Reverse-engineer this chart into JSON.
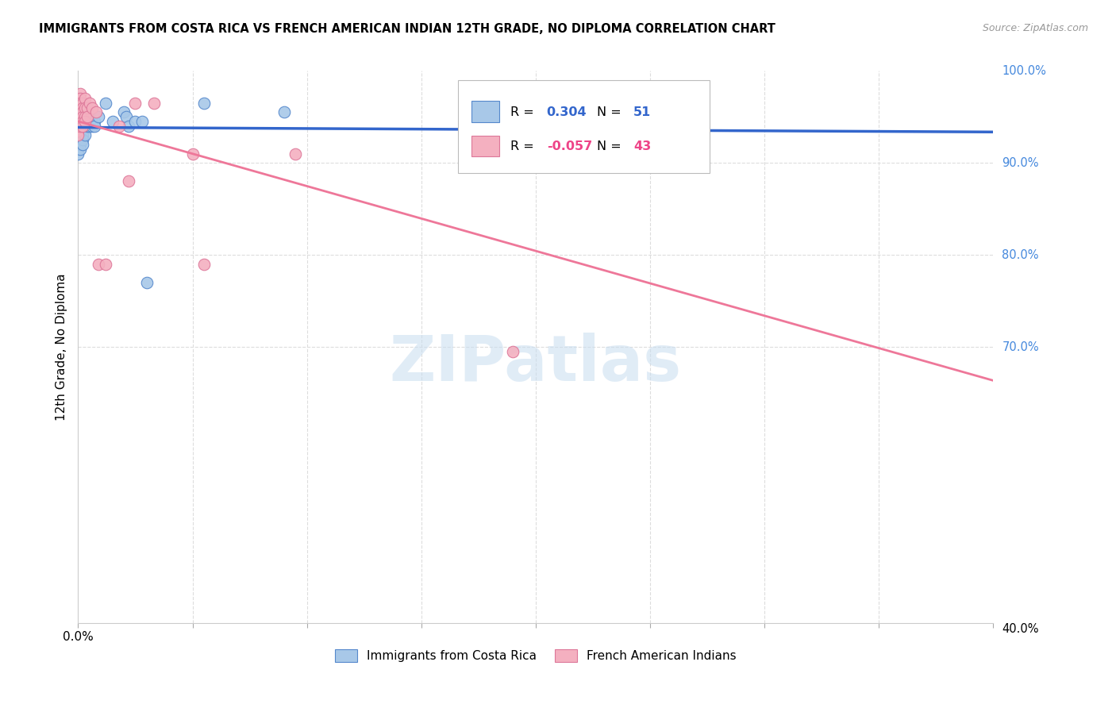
{
  "title": "IMMIGRANTS FROM COSTA RICA VS FRENCH AMERICAN INDIAN 12TH GRADE, NO DIPLOMA CORRELATION CHART",
  "source": "Source: ZipAtlas.com",
  "ylabel_label": "12th Grade, No Diploma",
  "legend_blue_label": "Immigrants from Costa Rica",
  "legend_pink_label": "French American Indians",
  "R_blue": 0.304,
  "N_blue": 51,
  "R_pink": -0.057,
  "N_pink": 43,
  "watermark": "ZIPatlas",
  "blue_fill": "#a8c8e8",
  "pink_fill": "#f4b0c0",
  "blue_edge": "#5588cc",
  "pink_edge": "#dd7799",
  "blue_line": "#3366cc",
  "pink_line": "#ee7799",
  "grid_color": "#dddddd",
  "right_tick_color": "#4488dd",
  "blue_scatter_x": [
    0.0,
    0.0,
    0.0,
    0.0,
    0.0,
    0.0,
    0.0,
    0.001,
    0.001,
    0.001,
    0.001,
    0.001,
    0.001,
    0.001,
    0.001,
    0.001,
    0.002,
    0.002,
    0.002,
    0.002,
    0.002,
    0.002,
    0.002,
    0.002,
    0.002,
    0.003,
    0.003,
    0.003,
    0.003,
    0.004,
    0.004,
    0.004,
    0.004,
    0.005,
    0.005,
    0.005,
    0.006,
    0.006,
    0.007,
    0.007,
    0.009,
    0.012,
    0.015,
    0.02,
    0.021,
    0.022,
    0.025,
    0.028,
    0.03,
    0.055,
    0.09
  ],
  "blue_scatter_y": [
    0.945,
    0.935,
    0.93,
    0.925,
    0.92,
    0.915,
    0.91,
    0.965,
    0.955,
    0.95,
    0.945,
    0.94,
    0.93,
    0.925,
    0.92,
    0.915,
    0.965,
    0.96,
    0.955,
    0.95,
    0.945,
    0.94,
    0.93,
    0.925,
    0.92,
    0.95,
    0.945,
    0.94,
    0.93,
    0.955,
    0.95,
    0.945,
    0.94,
    0.95,
    0.945,
    0.94,
    0.945,
    0.94,
    0.945,
    0.94,
    0.95,
    0.965,
    0.945,
    0.955,
    0.95,
    0.94,
    0.945,
    0.945,
    0.77,
    0.965,
    0.955
  ],
  "pink_scatter_x": [
    0.0,
    0.0,
    0.0,
    0.0,
    0.0,
    0.0,
    0.0,
    0.0,
    0.0,
    0.001,
    0.001,
    0.001,
    0.001,
    0.001,
    0.001,
    0.001,
    0.001,
    0.002,
    0.002,
    0.002,
    0.002,
    0.002,
    0.002,
    0.003,
    0.003,
    0.003,
    0.003,
    0.004,
    0.004,
    0.005,
    0.006,
    0.008,
    0.009,
    0.012,
    0.018,
    0.022,
    0.025,
    0.033,
    0.05,
    0.055,
    0.095,
    0.19,
    0.22
  ],
  "pink_scatter_y": [
    0.97,
    0.965,
    0.96,
    0.955,
    0.95,
    0.945,
    0.94,
    0.935,
    0.93,
    0.975,
    0.97,
    0.965,
    0.96,
    0.955,
    0.95,
    0.945,
    0.94,
    0.965,
    0.96,
    0.955,
    0.95,
    0.945,
    0.94,
    0.97,
    0.96,
    0.95,
    0.945,
    0.96,
    0.95,
    0.965,
    0.96,
    0.955,
    0.79,
    0.79,
    0.94,
    0.88,
    0.965,
    0.965,
    0.91,
    0.79,
    0.91,
    0.695,
    0.91
  ]
}
